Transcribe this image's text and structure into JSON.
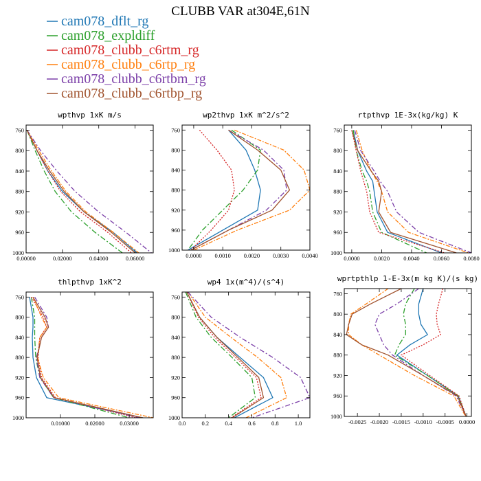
{
  "figure_title": "CLUBB VAR at304E,61N",
  "legend": [
    {
      "label": "cam078_dflt_rg",
      "color": "#1f77b4"
    },
    {
      "label": "cam078_expldiff",
      "color": "#2ca02c"
    },
    {
      "label": "cam078_clubb_c6rtm_rg",
      "color": "#d62728"
    },
    {
      "label": "cam078_clubb_c6rtp_rg",
      "color": "#ff7f0e"
    },
    {
      "label": "cam078_clubb_c6rtbm_rg",
      "color": "#7b3fa8"
    },
    {
      "label": "cam078_clubb_c6rtbp_rg",
      "color": "#a0522d"
    }
  ],
  "chart_data": [
    {
      "type": "line",
      "title": "wpthvp  1xK m/s",
      "xlim": [
        0,
        0.07
      ],
      "ylim": [
        1000,
        750
      ],
      "y_inverted": true,
      "x_ticks": [
        0,
        0.02,
        0.04,
        0.06
      ],
      "x_tick_labels": [
        "0.00000",
        "0.02000",
        "0.04000",
        "0.06000"
      ],
      "y_ticks": [
        760,
        800,
        840,
        880,
        920,
        960,
        1000
      ],
      "y": [
        760,
        800,
        840,
        880,
        920,
        960,
        1000
      ],
      "series": [
        {
          "name": "cam078_dflt_rg",
          "x": [
            0.0005,
            0.006,
            0.012,
            0.02,
            0.032,
            0.048,
            0.061
          ]
        },
        {
          "name": "cam078_expldiff",
          "x": [
            0.0005,
            0.005,
            0.01,
            0.016,
            0.025,
            0.038,
            0.053
          ]
        },
        {
          "name": "cam078_clubb_c6rtm_rg",
          "x": [
            0.0005,
            0.006,
            0.012,
            0.019,
            0.03,
            0.045,
            0.058
          ]
        },
        {
          "name": "cam078_clubb_c6rtp_rg",
          "x": [
            0.0005,
            0.007,
            0.014,
            0.022,
            0.033,
            0.048,
            0.062
          ]
        },
        {
          "name": "cam078_clubb_c6rtbm_rg",
          "x": [
            0.0005,
            0.008,
            0.017,
            0.027,
            0.04,
            0.055,
            0.069
          ]
        },
        {
          "name": "cam078_clubb_c6rtbp_rg",
          "x": [
            0.0005,
            0.006,
            0.013,
            0.021,
            0.032,
            0.047,
            0.06
          ]
        }
      ]
    },
    {
      "type": "line",
      "title": "wp2thvp  1xK m^2/s^2",
      "xlim": [
        -0.0004,
        0.004
      ],
      "ylim": [
        1000,
        750
      ],
      "y_inverted": true,
      "x_ticks": [
        0,
        0.001,
        0.002,
        0.003,
        0.004
      ],
      "x_tick_labels": [
        "0.0000",
        "0.0010",
        "0.0020",
        "0.0030",
        "0.0040"
      ],
      "y_ticks": [
        760,
        800,
        840,
        880,
        920,
        960,
        1000
      ],
      "y": [
        760,
        800,
        840,
        880,
        920,
        960,
        1000
      ],
      "series": [
        {
          "name": "cam078_dflt_rg",
          "x": [
            0.0012,
            0.0018,
            0.0021,
            0.0023,
            0.0022,
            0.001,
            -0.0002
          ]
        },
        {
          "name": "cam078_expldiff",
          "x": [
            0.0013,
            0.0023,
            0.0022,
            0.0017,
            0.001,
            0.0003,
            -0.0002
          ]
        },
        {
          "name": "cam078_clubb_c6rtm_rg",
          "x": [
            0.0002,
            0.0008,
            0.0013,
            0.0014,
            0.0012,
            0.0006,
            -0.0001
          ]
        },
        {
          "name": "cam078_clubb_c6rtp_rg",
          "x": [
            0.0014,
            0.0031,
            0.0038,
            0.004,
            0.0033,
            0.0015,
            0.0
          ]
        },
        {
          "name": "cam078_clubb_c6rtbm_rg",
          "x": [
            0.0012,
            0.0024,
            0.0031,
            0.0032,
            0.0025,
            0.0012,
            -0.0001
          ]
        },
        {
          "name": "cam078_clubb_c6rtbp_rg",
          "x": [
            0.0012,
            0.0022,
            0.003,
            0.0033,
            0.0027,
            0.0012,
            -0.0001
          ]
        }
      ]
    },
    {
      "type": "line",
      "title": "rtpthvp  1E-3x(kg/kg) K",
      "xlim": [
        -0.0005,
        0.008
      ],
      "ylim": [
        1000,
        750
      ],
      "y_inverted": true,
      "x_ticks": [
        0,
        0.002,
        0.004,
        0.006,
        0.008
      ],
      "x_tick_labels": [
        "0.0000",
        "0.0020",
        "0.0040",
        "0.0060",
        "0.0080"
      ],
      "y_ticks": [
        760,
        800,
        840,
        880,
        920,
        960,
        1000
      ],
      "y": [
        760,
        800,
        840,
        860,
        880,
        920,
        960,
        1000
      ],
      "series": [
        {
          "name": "cam078_dflt_rg",
          "x": [
            0.0001,
            0.0004,
            0.001,
            0.0014,
            0.0015,
            0.0017,
            0.0024,
            0.006
          ]
        },
        {
          "name": "cam078_expldiff",
          "x": [
            0.0001,
            0.0003,
            0.0007,
            0.001,
            0.0012,
            0.0014,
            0.002,
            0.005
          ]
        },
        {
          "name": "cam078_clubb_c6rtm_rg",
          "x": [
            0.0,
            0.0003,
            0.0006,
            0.0008,
            0.001,
            0.0012,
            0.0018,
            0.0062
          ]
        },
        {
          "name": "cam078_clubb_c6rtp_rg",
          "x": [
            0.0003,
            0.0007,
            0.0013,
            0.0017,
            0.002,
            0.0024,
            0.0038,
            0.0078
          ]
        },
        {
          "name": "cam078_clubb_c6rtbm_rg",
          "x": [
            0.0002,
            0.0006,
            0.0015,
            0.0019,
            0.0024,
            0.003,
            0.0045,
            0.008
          ]
        },
        {
          "name": "cam078_clubb_c6rtbp_rg",
          "x": [
            0.0,
            0.0004,
            0.0013,
            0.0018,
            0.002,
            0.0018,
            0.0026,
            0.007
          ]
        }
      ]
    },
    {
      "type": "line",
      "title": "thlpthvp  1xK^2",
      "xlim": [
        0,
        0.037
      ],
      "ylim": [
        1000,
        750
      ],
      "y_inverted": true,
      "x_ticks": [
        0.01,
        0.02,
        0.03
      ],
      "x_tick_labels": [
        "0.01000",
        "0.02000",
        "0.03000"
      ],
      "y_ticks": [
        760,
        800,
        840,
        880,
        920,
        960,
        1000
      ],
      "y": [
        760,
        800,
        820,
        840,
        880,
        920,
        960,
        1000
      ],
      "series": [
        {
          "name": "cam078_dflt_rg",
          "x": [
            0.001,
            0.002,
            0.002,
            0.0018,
            0.002,
            0.003,
            0.006,
            0.034
          ]
        },
        {
          "name": "cam078_expldiff",
          "x": [
            0.0015,
            0.0025,
            0.0025,
            0.0025,
            0.0028,
            0.004,
            0.008,
            0.03
          ]
        },
        {
          "name": "cam078_clubb_c6rtm_rg",
          "x": [
            0.0015,
            0.005,
            0.006,
            0.004,
            0.0035,
            0.0045,
            0.0085,
            0.032
          ]
        },
        {
          "name": "cam078_clubb_c6rtp_rg",
          "x": [
            0.002,
            0.0045,
            0.006,
            0.004,
            0.0033,
            0.005,
            0.0095,
            0.037
          ]
        },
        {
          "name": "cam078_clubb_c6rtbm_rg",
          "x": [
            0.0025,
            0.006,
            0.0065,
            0.0045,
            0.003,
            0.004,
            0.008,
            0.033
          ]
        },
        {
          "name": "cam078_clubb_c6rtbp_rg",
          "x": [
            0.002,
            0.0055,
            0.0065,
            0.0045,
            0.0032,
            0.0042,
            0.0082,
            0.034
          ]
        }
      ]
    },
    {
      "type": "line",
      "title": "wp4  1x(m^4)/(s^4)",
      "xlim": [
        0,
        1.1
      ],
      "ylim": [
        1000,
        750
      ],
      "y_inverted": true,
      "x_ticks": [
        0,
        0.2,
        0.4,
        0.6,
        0.8,
        1.0
      ],
      "x_tick_labels": [
        "0.0",
        "0.2",
        "0.4",
        "0.6",
        "0.8",
        "1.0"
      ],
      "y_ticks": [
        760,
        800,
        840,
        880,
        920,
        960,
        1000
      ],
      "y": [
        750,
        800,
        840,
        880,
        920,
        960,
        1000
      ],
      "series": [
        {
          "name": "cam078_dflt_rg",
          "x": [
            0.04,
            0.15,
            0.3,
            0.5,
            0.7,
            0.78,
            0.45
          ]
        },
        {
          "name": "cam078_expldiff",
          "x": [
            0.03,
            0.12,
            0.25,
            0.43,
            0.6,
            0.63,
            0.4
          ]
        },
        {
          "name": "cam078_clubb_c6rtm_rg",
          "x": [
            0.04,
            0.14,
            0.28,
            0.46,
            0.64,
            0.68,
            0.42
          ]
        },
        {
          "name": "cam078_clubb_c6rtp_rg",
          "x": [
            0.05,
            0.2,
            0.42,
            0.65,
            0.85,
            0.9,
            0.55
          ]
        },
        {
          "name": "cam078_clubb_c6rtbm_rg",
          "x": [
            0.05,
            0.25,
            0.5,
            0.78,
            1.02,
            1.1,
            0.6
          ]
        },
        {
          "name": "cam078_clubb_c6rtbp_rg",
          "x": [
            0.04,
            0.15,
            0.3,
            0.48,
            0.66,
            0.7,
            0.43
          ]
        }
      ]
    },
    {
      "type": "line",
      "title": "wprtpthlp  1-E-3x(m kg K)/(s kg)",
      "xlim": [
        -0.0028,
        0.0001
      ],
      "ylim": [
        1000,
        750
      ],
      "y_inverted": true,
      "x_ticks": [
        -0.0025,
        -0.002,
        -0.0015,
        -0.001,
        -0.0005,
        0
      ],
      "x_tick_labels": [
        "-0.0025",
        "-0.0020",
        "-0.0015",
        "-0.0010",
        "-0.0005",
        "0.0000"
      ],
      "y_ticks": [
        760,
        800,
        840,
        880,
        920,
        960,
        1000
      ],
      "y": [
        750,
        780,
        800,
        820,
        840,
        860,
        880,
        920,
        960,
        1000
      ],
      "series": [
        {
          "name": "cam078_dflt_rg",
          "x": [
            -0.001,
            -0.0011,
            -0.0011,
            -0.00105,
            -0.0009,
            -0.0013,
            -0.0016,
            -0.0009,
            -0.0002,
            -2e-05
          ]
        },
        {
          "name": "cam078_expldiff",
          "x": [
            -0.0012,
            -0.0014,
            -0.00145,
            -0.0014,
            -0.0014,
            -0.00155,
            -0.00165,
            -0.0009,
            -0.0002,
            -2e-05
          ]
        },
        {
          "name": "cam078_clubb_c6rtm_rg",
          "x": [
            -0.00055,
            -0.00065,
            -0.0007,
            -0.00068,
            -0.0006,
            -0.001,
            -0.0015,
            -0.00085,
            -0.00018,
            -2e-05
          ]
        },
        {
          "name": "cam078_clubb_c6rtp_rg",
          "x": [
            -0.0018,
            -0.0023,
            -0.00265,
            -0.0027,
            -0.0027,
            -0.0024,
            -0.002,
            -0.0012,
            -0.0003,
            -3e-05
          ]
        },
        {
          "name": "cam078_clubb_c6rtbm_rg",
          "x": [
            -0.0011,
            -0.0016,
            -0.002,
            -0.0021,
            -0.002,
            -0.0019,
            -0.0017,
            -0.001,
            -0.00025,
            -2e-05
          ]
        },
        {
          "name": "cam078_clubb_c6rtbp_rg",
          "x": [
            -0.0015,
            -0.0022,
            -0.00262,
            -0.0027,
            -0.00275,
            -0.0024,
            -0.0018,
            -0.001,
            -0.00022,
            -2e-05
          ]
        }
      ]
    }
  ]
}
